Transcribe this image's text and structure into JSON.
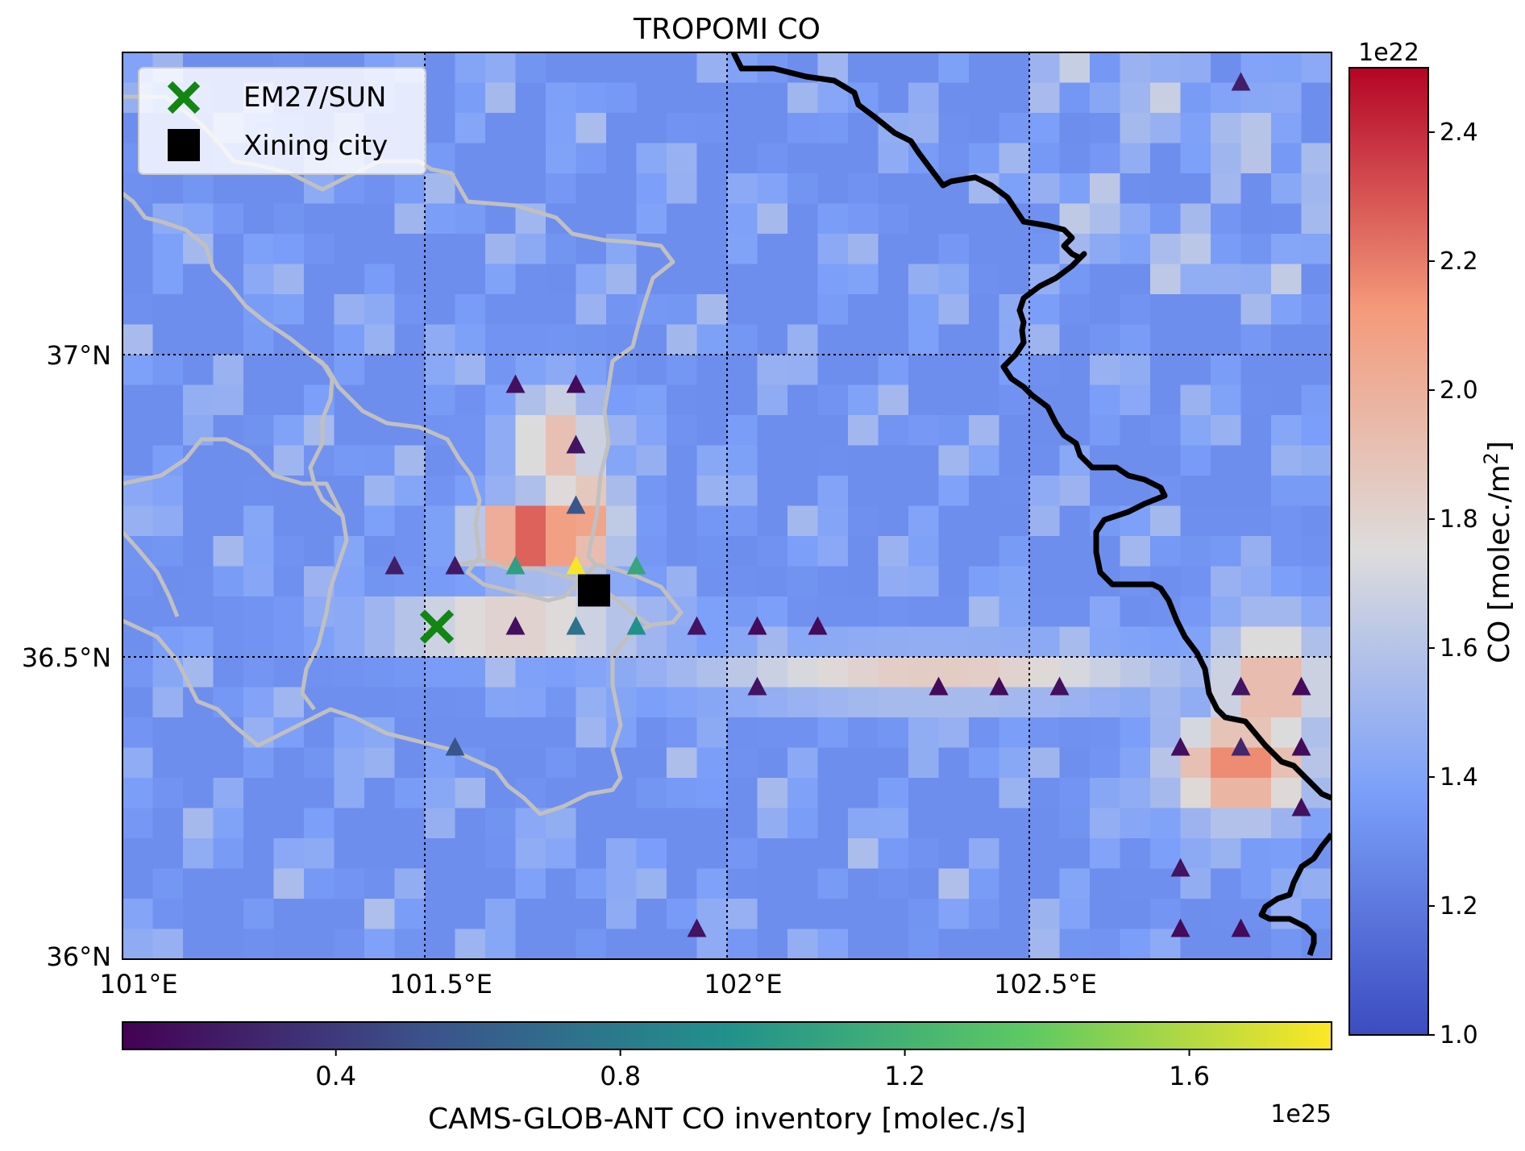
{
  "title": "TROPOMI CO",
  "legend": {
    "items": [
      {
        "label": "EM27/SUN",
        "marker": "green-x",
        "color": "#138513"
      },
      {
        "label": "Xining city",
        "marker": "black-square",
        "color": "#000000"
      }
    ]
  },
  "axes": {
    "x_ticks": [
      "101°E",
      "101.5°E",
      "102°E",
      "102.5°E"
    ],
    "y_ticks": [
      "37°N",
      "36.5°N",
      "36°N"
    ]
  },
  "colorbar_co": {
    "label": "CO [molec./m",
    "label_superscript": "2",
    "label_suffix": "]",
    "multiplier": "1e22",
    "ticks": [
      "2.4",
      "2.2",
      "2.0",
      "1.8",
      "1.6",
      "1.4",
      "1.2",
      "1.0"
    ],
    "range": [
      1.0,
      2.5
    ],
    "colormap": "coolwarm"
  },
  "colorbar_inventory": {
    "label": "CAMS-GLOB-ANT CO inventory [molec./s]",
    "multiplier": "1e25",
    "ticks": [
      "0.4",
      "0.8",
      "1.2",
      "1.6"
    ],
    "range": [
      0.1,
      1.8
    ],
    "colormap": "viridis"
  },
  "chart_data": {
    "type": "heatmap",
    "title": "TROPOMI CO",
    "extent": {
      "lon": [
        101.0,
        103.0
      ],
      "lat": [
        36.0,
        37.5
      ]
    },
    "grid": true,
    "co_units": "1e22 molec./m2",
    "markers": {
      "em27_sun": {
        "lon": 101.52,
        "lat": 36.55
      },
      "xining_city": {
        "lon": 101.78,
        "lat": 36.61
      }
    },
    "inventory_points": [
      {
        "lon": 101.65,
        "lat": 36.95,
        "value": 0.18
      },
      {
        "lon": 101.75,
        "lat": 36.95,
        "value": 0.15
      },
      {
        "lon": 101.75,
        "lat": 36.85,
        "value": 0.2
      },
      {
        "lon": 101.75,
        "lat": 36.75,
        "value": 0.55
      },
      {
        "lon": 101.45,
        "lat": 36.65,
        "value": 0.25
      },
      {
        "lon": 101.55,
        "lat": 36.65,
        "value": 0.22
      },
      {
        "lon": 101.65,
        "lat": 36.65,
        "value": 1.05
      },
      {
        "lon": 101.75,
        "lat": 36.65,
        "value": 1.78
      },
      {
        "lon": 101.85,
        "lat": 36.65,
        "value": 1.1
      },
      {
        "lon": 101.65,
        "lat": 36.55,
        "value": 0.18
      },
      {
        "lon": 101.75,
        "lat": 36.55,
        "value": 0.75
      },
      {
        "lon": 101.85,
        "lat": 36.55,
        "value": 0.95
      },
      {
        "lon": 101.95,
        "lat": 36.55,
        "value": 0.2
      },
      {
        "lon": 102.05,
        "lat": 36.55,
        "value": 0.15
      },
      {
        "lon": 102.15,
        "lat": 36.55,
        "value": 0.15
      },
      {
        "lon": 102.05,
        "lat": 36.45,
        "value": 0.2
      },
      {
        "lon": 102.35,
        "lat": 36.45,
        "value": 0.15
      },
      {
        "lon": 102.45,
        "lat": 36.45,
        "value": 0.15
      },
      {
        "lon": 102.55,
        "lat": 36.45,
        "value": 0.18
      },
      {
        "lon": 102.85,
        "lat": 36.45,
        "value": 0.2
      },
      {
        "lon": 102.95,
        "lat": 36.45,
        "value": 0.15
      },
      {
        "lon": 101.55,
        "lat": 36.35,
        "value": 0.55
      },
      {
        "lon": 102.75,
        "lat": 36.35,
        "value": 0.18
      },
      {
        "lon": 102.85,
        "lat": 36.35,
        "value": 0.3
      },
      {
        "lon": 102.95,
        "lat": 36.35,
        "value": 0.15
      },
      {
        "lon": 102.95,
        "lat": 36.25,
        "value": 0.18
      },
      {
        "lon": 102.75,
        "lat": 36.15,
        "value": 0.2
      },
      {
        "lon": 101.95,
        "lat": 36.05,
        "value": 0.2
      },
      {
        "lon": 102.75,
        "lat": 36.05,
        "value": 0.15
      },
      {
        "lon": 102.85,
        "lat": 36.05,
        "value": 0.15
      },
      {
        "lon": 102.85,
        "lat": 37.45,
        "value": 0.25
      }
    ],
    "co_hotspots": [
      {
        "lon": 101.68,
        "lat": 36.7,
        "peak": 2.45,
        "rx": 0.1,
        "ry": 0.06
      },
      {
        "lon": 101.76,
        "lat": 36.72,
        "peak": 2.1,
        "rx": 0.07,
        "ry": 0.1
      },
      {
        "lon": 101.72,
        "lat": 36.85,
        "peak": 1.95,
        "rx": 0.08,
        "ry": 0.1
      },
      {
        "lon": 101.65,
        "lat": 36.55,
        "peak": 1.95,
        "rx": 0.24,
        "ry": 0.05
      },
      {
        "lon": 102.35,
        "lat": 36.47,
        "peak": 1.85,
        "rx": 0.45,
        "ry": 0.05
      },
      {
        "lon": 102.85,
        "lat": 36.32,
        "peak": 2.2,
        "rx": 0.12,
        "ry": 0.09
      },
      {
        "lon": 102.9,
        "lat": 36.45,
        "peak": 2.0,
        "rx": 0.1,
        "ry": 0.12
      }
    ]
  }
}
